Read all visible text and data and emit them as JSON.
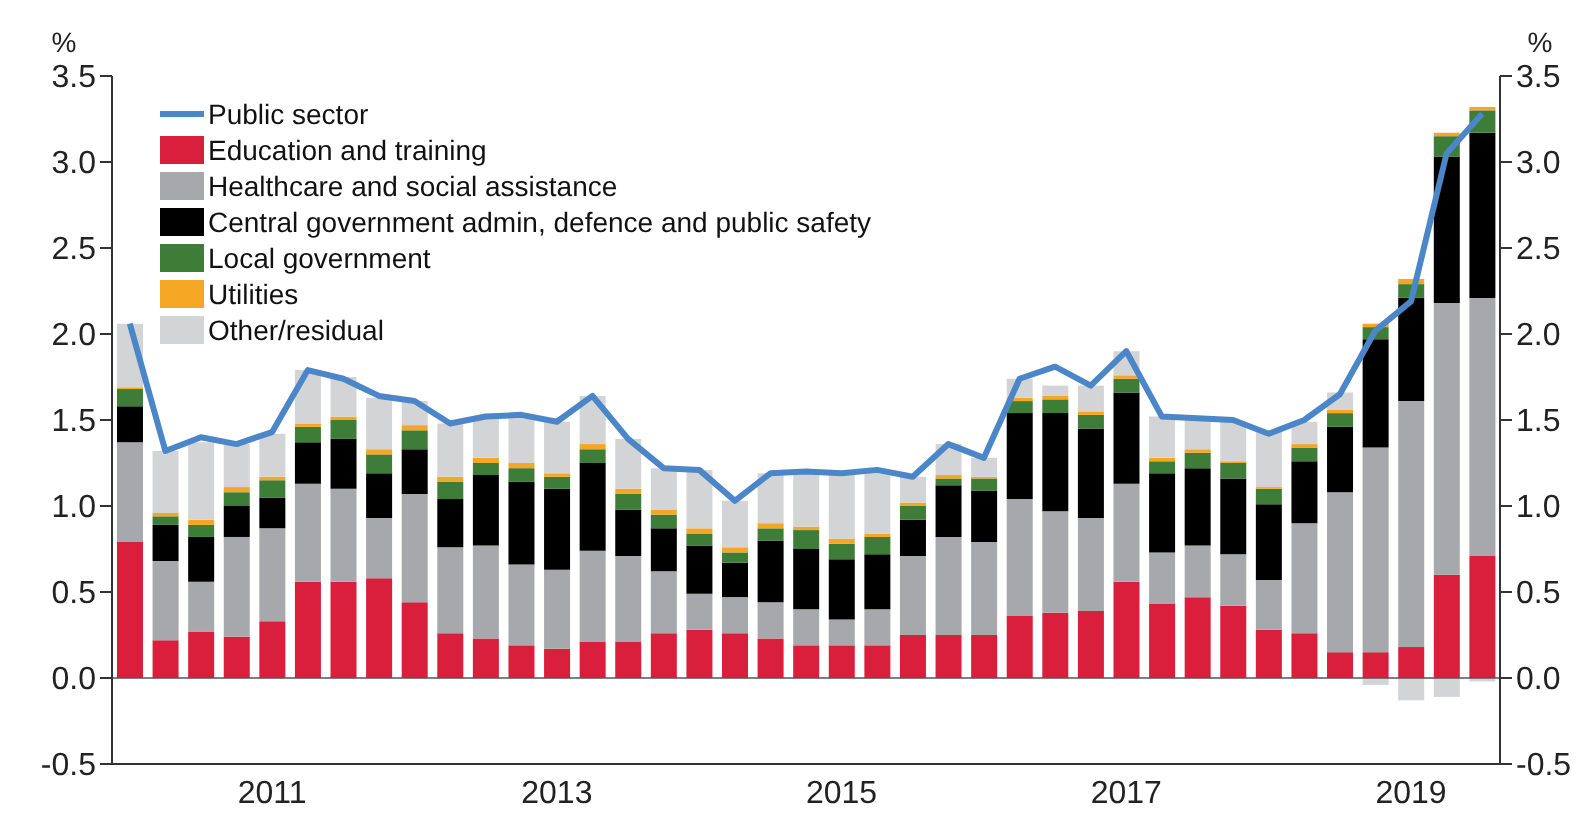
{
  "chart_data": {
    "type": "bar",
    "stacked": true,
    "ylabel": "%",
    "y2label": "%",
    "categories": [
      null,
      null,
      null,
      null,
      "2011",
      null,
      null,
      null,
      null,
      null,
      null,
      null,
      "2013",
      null,
      null,
      null,
      null,
      null,
      null,
      null,
      "2015",
      null,
      null,
      null,
      null,
      null,
      null,
      null,
      "2017",
      null,
      null,
      null,
      null,
      null,
      null,
      null,
      "2019",
      null,
      null
    ],
    "series": [
      {
        "name": "Public sector",
        "type": "line",
        "color": "#4a86c8",
        "values": [
          2.06,
          1.32,
          1.4,
          1.36,
          1.43,
          1.79,
          1.74,
          1.64,
          1.61,
          1.48,
          1.52,
          1.53,
          1.49,
          1.64,
          1.39,
          1.22,
          1.21,
          1.03,
          1.19,
          1.2,
          1.19,
          1.21,
          1.17,
          1.36,
          1.28,
          1.74,
          1.81,
          1.7,
          1.9,
          1.52,
          1.51,
          1.5,
          1.42,
          1.5,
          1.65,
          2.02,
          2.19,
          3.05,
          3.28
        ]
      },
      {
        "name": "Education and training",
        "color": "#d91f3b",
        "values": [
          0.79,
          0.22,
          0.27,
          0.24,
          0.33,
          0.56,
          0.56,
          0.58,
          0.44,
          0.26,
          0.23,
          0.19,
          0.17,
          0.21,
          0.21,
          0.26,
          0.28,
          0.26,
          0.23,
          0.19,
          0.19,
          0.19,
          0.25,
          0.25,
          0.25,
          0.36,
          0.38,
          0.39,
          0.56,
          0.43,
          0.47,
          0.42,
          0.28,
          0.26,
          0.15,
          0.15,
          0.18,
          0.6,
          0.71
        ]
      },
      {
        "name": "Healthcare and social assistance",
        "color": "#a7a8ab",
        "values": [
          0.58,
          0.46,
          0.29,
          0.58,
          0.54,
          0.57,
          0.54,
          0.35,
          0.63,
          0.5,
          0.54,
          0.47,
          0.46,
          0.53,
          0.5,
          0.36,
          0.21,
          0.21,
          0.21,
          0.21,
          0.15,
          0.21,
          0.46,
          0.57,
          0.54,
          0.68,
          0.59,
          0.54,
          0.57,
          0.3,
          0.3,
          0.3,
          0.29,
          0.64,
          0.93,
          1.19,
          1.43,
          1.58,
          1.5
        ]
      },
      {
        "name": "Central government admin, defence and public safety",
        "color": "#000000",
        "values": [
          0.21,
          0.21,
          0.26,
          0.18,
          0.18,
          0.24,
          0.29,
          0.26,
          0.26,
          0.28,
          0.41,
          0.48,
          0.47,
          0.51,
          0.27,
          0.25,
          0.28,
          0.2,
          0.36,
          0.35,
          0.35,
          0.32,
          0.21,
          0.3,
          0.3,
          0.5,
          0.57,
          0.52,
          0.53,
          0.46,
          0.45,
          0.44,
          0.44,
          0.36,
          0.38,
          0.63,
          0.6,
          0.85,
          0.96
        ]
      },
      {
        "name": "Local government",
        "color": "#3e7d38",
        "values": [
          0.1,
          0.05,
          0.07,
          0.08,
          0.1,
          0.09,
          0.11,
          0.11,
          0.11,
          0.1,
          0.07,
          0.08,
          0.07,
          0.08,
          0.09,
          0.08,
          0.07,
          0.06,
          0.07,
          0.11,
          0.09,
          0.1,
          0.08,
          0.04,
          0.07,
          0.07,
          0.08,
          0.08,
          0.08,
          0.07,
          0.09,
          0.09,
          0.09,
          0.08,
          0.08,
          0.07,
          0.08,
          0.12,
          0.13
        ]
      },
      {
        "name": "Utilities",
        "color": "#f5a623",
        "values": [
          0.01,
          0.02,
          0.03,
          0.03,
          0.02,
          0.02,
          0.02,
          0.03,
          0.03,
          0.03,
          0.03,
          0.03,
          0.02,
          0.03,
          0.03,
          0.03,
          0.03,
          0.03,
          0.03,
          0.02,
          0.03,
          0.02,
          0.02,
          0.02,
          0.01,
          0.02,
          0.02,
          0.02,
          0.02,
          0.02,
          0.02,
          0.01,
          0.01,
          0.02,
          0.02,
          0.02,
          0.03,
          0.02,
          0.02
        ]
      },
      {
        "name": "Other/residual",
        "color": "#d3d4d6",
        "values": [
          0.37,
          0.36,
          0.45,
          0.25,
          0.25,
          0.31,
          0.23,
          0.3,
          0.14,
          0.31,
          0.24,
          0.27,
          0.3,
          0.28,
          0.29,
          0.24,
          0.34,
          0.27,
          0.29,
          0.32,
          0.38,
          0.37,
          0.15,
          0.18,
          0.11,
          0.11,
          0.06,
          0.15,
          0.14,
          0.24,
          0.17,
          0.23,
          0.32,
          0.13,
          0.1,
          -0.04,
          -0.13,
          -0.11,
          -0.02
        ]
      }
    ],
    "ylim": [
      -0.5,
      3.5
    ],
    "yticks": [
      {
        "value": -0.5,
        "label": "-0.5"
      },
      {
        "value": 0,
        "label": "0.0"
      },
      {
        "value": 0.5,
        "label": "0.5"
      },
      {
        "value": 1,
        "label": "1.0"
      },
      {
        "value": 1.5,
        "label": "1.5"
      },
      {
        "value": 2,
        "label": "2.0"
      },
      {
        "value": 2.5,
        "label": "2.5"
      },
      {
        "value": 3,
        "label": "3.0"
      },
      {
        "value": 3.5,
        "label": "3.5"
      }
    ],
    "y2lim": [
      -0.5,
      3.5
    ],
    "y2ticks": [
      {
        "value": -0.5,
        "label": "-0.5"
      },
      {
        "value": 0,
        "label": "0.0"
      },
      {
        "value": 0.5,
        "label": "0.5"
      },
      {
        "value": 1,
        "label": "1.0"
      },
      {
        "value": 1.5,
        "label": "1.5"
      },
      {
        "value": 2,
        "label": "2.0"
      },
      {
        "value": 2.5,
        "label": "2.5"
      },
      {
        "value": 3,
        "label": "3.0"
      },
      {
        "value": 3.5,
        "label": "3.5"
      }
    ],
    "ref_lines": [
      {
        "axis": "y",
        "value": 0,
        "color": "#555555"
      }
    ],
    "legend": "top left",
    "grid": false,
    "marker": "none",
    "line_style": "solid"
  }
}
